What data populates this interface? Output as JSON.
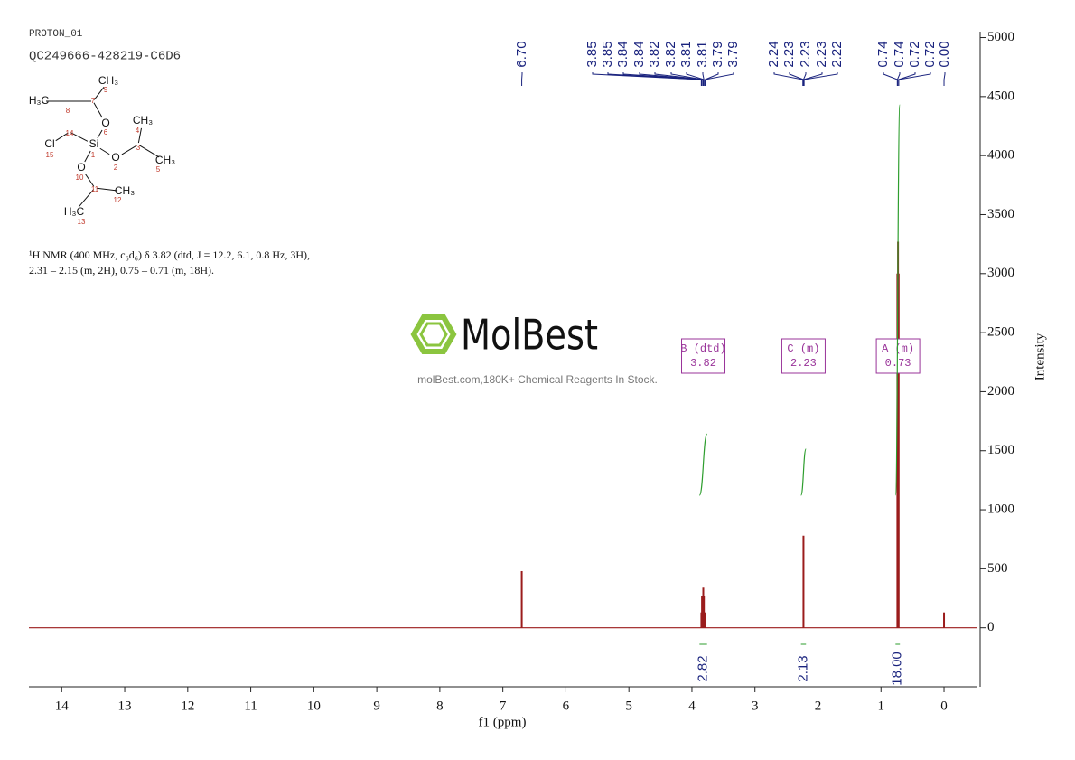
{
  "chart_data": {
    "type": "spectrum",
    "title": "PROTON_01",
    "subtitle": "QC249666-428219-C6D6",
    "description": [
      "¹H NMR (400 MHz, c₆d₆) δ 3.82 (dtd, J = 12.2, 6.1, 0.8 Hz, 3H),",
      "2.31 – 2.15 (m, 2H), 0.75 – 0.71 (m, 18H)."
    ],
    "xlabel": "f1 (ppm)",
    "ylabel": "Intensity",
    "xlim": [
      14.52,
      -0.53
    ],
    "xticks": [
      14,
      13,
      12,
      11,
      10,
      9,
      8,
      7,
      6,
      5,
      4,
      3,
      2,
      1,
      0
    ],
    "ylim": [
      -500,
      5050
    ],
    "yticks": [
      0,
      500,
      1000,
      1500,
      2000,
      2500,
      3000,
      3500,
      4000,
      4500,
      5000
    ],
    "color": "#9b1c1c",
    "x": [
      6.7,
      3.85,
      3.84,
      3.82,
      3.81,
      3.79,
      2.23,
      0.74,
      0.73,
      0.72,
      0.0
    ],
    "values": [
      480,
      130,
      270,
      340,
      270,
      130,
      780,
      3000,
      3270,
      3000,
      130
    ],
    "peak_labels": [
      {
        "value": 6.7,
        "label": "6.70"
      },
      {
        "value": 3.85,
        "label": "3.85"
      },
      {
        "value": 3.85,
        "label": "3.85"
      },
      {
        "value": 3.84,
        "label": "3.84"
      },
      {
        "value": 3.84,
        "label": "3.84"
      },
      {
        "value": 3.82,
        "label": "3.82"
      },
      {
        "value": 3.82,
        "label": "3.82"
      },
      {
        "value": 3.81,
        "label": "3.81"
      },
      {
        "value": 3.81,
        "label": "3.81"
      },
      {
        "value": 3.79,
        "label": "3.79"
      },
      {
        "value": 3.79,
        "label": "3.79"
      },
      {
        "value": 2.24,
        "label": "2.24"
      },
      {
        "value": 2.23,
        "label": "2.23"
      },
      {
        "value": 2.23,
        "label": "2.23"
      },
      {
        "value": 2.23,
        "label": "2.23"
      },
      {
        "value": 2.22,
        "label": "2.22"
      },
      {
        "value": 0.74,
        "label": "0.74"
      },
      {
        "value": 0.74,
        "label": "0.74"
      },
      {
        "value": 0.72,
        "label": "0.72"
      },
      {
        "value": 0.72,
        "label": "0.72"
      },
      {
        "value": 0,
        "label": "0.00"
      }
    ],
    "multiplets": [
      {
        "name": "B (dtd)",
        "shift": 3.82
      },
      {
        "name": "C (m)",
        "shift": 2.23
      },
      {
        "name": "A (m)",
        "shift": 0.73
      }
    ],
    "integrals": [
      {
        "value": 2.82,
        "label": "2.82",
        "from": 3.88,
        "to": 3.76
      },
      {
        "value": 2.13,
        "label": "2.13",
        "from": 2.27,
        "to": 2.19
      },
      {
        "value": 18,
        "label": "18.00",
        "from": 0.77,
        "to": 0.7
      }
    ],
    "brand": "MolBest",
    "tagline": "molBest.com,180K+ Chemical Reagents In Stock.",
    "structure": {
      "atoms": [
        {
          "label": "CH₃",
          "locant": 9
        },
        {
          "label": "H₃C",
          "locant": 8
        },
        {
          "locant": 7
        },
        {
          "label": "O",
          "locant": 6
        },
        {
          "label": "CH₃",
          "locant": 4
        },
        {
          "locant": 3
        },
        {
          "label": "Cl",
          "locant": 15
        },
        {
          "locant": 14
        },
        {
          "label": "Si",
          "locant": 1
        },
        {
          "label": "O",
          "locant": 2
        },
        {
          "label": "CH₃",
          "locant": 5
        },
        {
          "label": "O",
          "locant": 10
        },
        {
          "locant": 11
        },
        {
          "label": "CH₃",
          "locant": 12
        },
        {
          "label": "H₃C",
          "locant": 13
        }
      ]
    }
  }
}
